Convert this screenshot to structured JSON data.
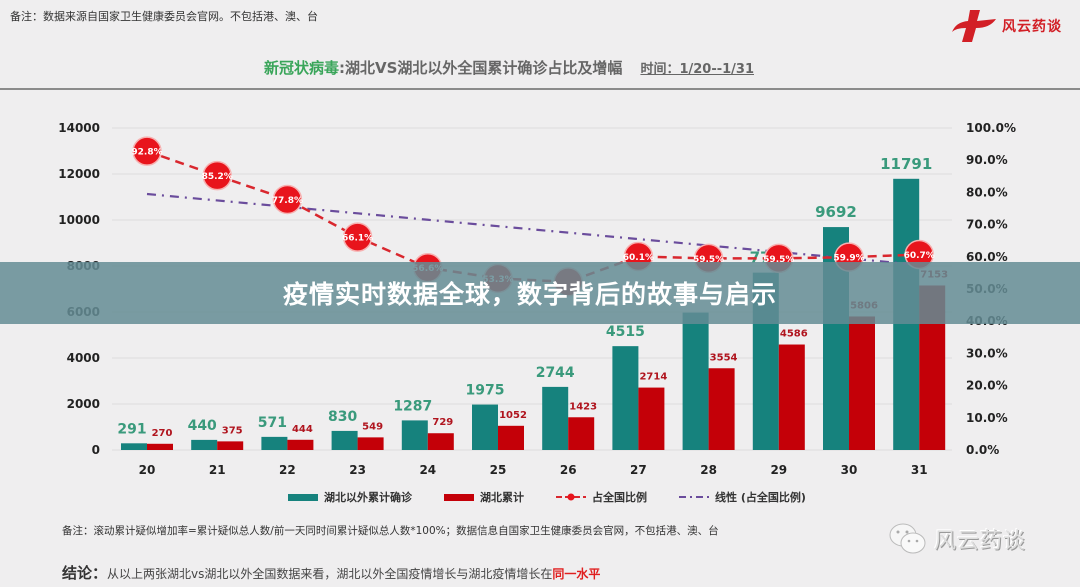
{
  "header": {
    "note": "备注：数据来源自国家卫生健康委员会官网。不包括港、澳、台",
    "brand": "风云药谈"
  },
  "title": {
    "highlight": "新冠状病毒",
    "main": ":湖北VS湖北以外全国累计确诊占比及增幅",
    "time": "时间：1/20--1/31"
  },
  "overlay": {
    "headline": "疫情实时数据全球，数字背后的故事与启示"
  },
  "legend": {
    "items": [
      {
        "label": "湖北以外累计确诊",
        "type": "bar",
        "color": "#16827d"
      },
      {
        "label": "湖北累计",
        "type": "bar",
        "color": "#c40008"
      },
      {
        "label": "占全国比例",
        "type": "line",
        "color": "#d9272e"
      },
      {
        "label": "线性 (占全国比例)",
        "type": "trend",
        "color": "#6a4c9c"
      }
    ]
  },
  "footer": {
    "note": "备注：滚动累计疑似增加率=累计疑似总人数/前一天同时间累计疑似总人数*100%；数据信息自国家卫生健康委员会官网，不包括港、澳、台",
    "conclusion_label": "结论：",
    "conclusion_text": "从以上两张湖北vs湖北以外全国数据来看，湖北以外全国疫情增长与湖北疫情增长在",
    "conclusion_highlight": "同一水平",
    "watermark": "风云药谈"
  },
  "colors": {
    "teal": "#16827d",
    "red": "#c40008",
    "marker": "#e8141c",
    "trend": "#6a4c9c",
    "teal_label": "#3a9a7c",
    "red_label": "#b0141e"
  },
  "chart_data": {
    "type": "bar",
    "title": "新冠状病毒:湖北VS湖北以外全国累计确诊占比及增幅",
    "subtitle": "时间：1/20--1/31",
    "xlabel": "",
    "ylabel": "",
    "categories": [
      "20",
      "21",
      "22",
      "23",
      "24",
      "25",
      "26",
      "27",
      "28",
      "29",
      "30",
      "31"
    ],
    "ylim": [
      0,
      14000
    ],
    "yticks": [
      "0",
      "2000",
      "4000",
      "6000",
      "8000",
      "10000",
      "12000",
      "14000"
    ],
    "y2lim": [
      0,
      100
    ],
    "y2ticks": [
      "0.0%",
      "10.0%",
      "20.0%",
      "30.0%",
      "40.0%",
      "50.0%",
      "60.0%",
      "70.0%",
      "80.0%",
      "90.0%",
      "100.0%"
    ],
    "grid": true,
    "legend_position": "bottom",
    "series": [
      {
        "name": "湖北以外累计确诊",
        "type": "bar",
        "axis": "left",
        "values": [
          291,
          440,
          571,
          830,
          1287,
          1975,
          2744,
          4515,
          5974,
          7711,
          9692,
          11791
        ],
        "labels": [
          "291",
          "440",
          "571",
          "830",
          "1287",
          "1975",
          "2744",
          "4515",
          "",
          "77..",
          "9692",
          "11791"
        ]
      },
      {
        "name": "湖北累计",
        "type": "bar",
        "axis": "left",
        "values": [
          270,
          375,
          444,
          549,
          729,
          1052,
          1423,
          2714,
          3554,
          4586,
          5806,
          7153
        ],
        "labels": [
          "270",
          "375",
          "444",
          "549",
          "729",
          "1052",
          "1423",
          "2714",
          "3554",
          "4586",
          "5806",
          "7153"
        ]
      },
      {
        "name": "占全国比例",
        "type": "line",
        "axis": "right",
        "values": [
          92.8,
          85.2,
          77.8,
          66.1,
          56.6,
          53.3,
          52.2,
          60.1,
          59.5,
          59.5,
          59.9,
          60.7
        ],
        "labels": [
          "92.8%",
          "85.2%",
          "77.8%",
          "66.1%",
          "56.6%",
          "53.3%",
          "",
          "60.1%",
          "59.5%",
          "59.5%",
          "59.9%",
          "60.7%"
        ]
      },
      {
        "name": "线性 (占全国比例)",
        "type": "trend",
        "axis": "right",
        "values": [
          79.5,
          77.5,
          75.5,
          73.5,
          71.5,
          69.5,
          67.5,
          65.5,
          63.5,
          61.5,
          59.5,
          57.5
        ]
      }
    ]
  }
}
